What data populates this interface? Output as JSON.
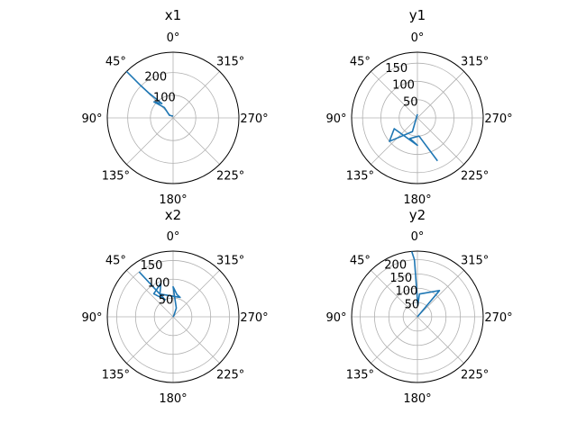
{
  "chart_data": [
    {
      "type": "polar-line",
      "title": "x1",
      "theta_direction": "clockwise",
      "theta_zero": "top",
      "angle_labels": [
        "0°",
        "315°",
        "270°",
        "225°",
        "180°",
        "135°",
        "90°",
        "45°"
      ],
      "r_ticks": [
        100,
        200
      ],
      "r_tick_labels": [
        "100",
        "200"
      ],
      "rlim": [
        0,
        290
      ],
      "series": [
        {
          "color": "#1f77b4",
          "points": [
            [
              0,
              8
            ],
            [
              55,
              20
            ],
            [
              40,
              60
            ],
            [
              50,
              110
            ],
            [
              38,
              80
            ],
            [
              44,
              150
            ],
            [
              44,
              140
            ],
            [
              45,
              200
            ],
            [
              45,
              305
            ]
          ]
        }
      ]
    },
    {
      "type": "polar-line",
      "title": "y1",
      "theta_direction": "clockwise",
      "theta_zero": "top",
      "angle_labels": [
        "0°",
        "315°",
        "270°",
        "225°",
        "180°",
        "135°",
        "90°",
        "45°"
      ],
      "r_ticks": [
        50,
        100,
        150
      ],
      "r_tick_labels": [
        "50",
        "100",
        "150"
      ],
      "rlim": [
        0,
        180
      ],
      "series": [
        {
          "color": "#1f77b4",
          "points": [
            [
              0,
              10
            ],
            [
              160,
              40
            ],
            [
              130,
              100
            ],
            [
              115,
              70
            ],
            [
              180,
              75
            ],
            [
              160,
              60
            ],
            [
              185,
              50
            ],
            [
              205,
              130
            ]
          ]
        }
      ]
    },
    {
      "type": "polar-line",
      "title": "x2",
      "theta_direction": "clockwise",
      "theta_zero": "top",
      "angle_labels": [
        "0°",
        "315°",
        "270°",
        "225°",
        "180°",
        "135°",
        "90°",
        "45°"
      ],
      "r_ticks": [
        50,
        100,
        150
      ],
      "r_tick_labels": [
        "50",
        "100",
        "150"
      ],
      "rlim": [
        0,
        175
      ],
      "series": [
        {
          "color": "#1f77b4",
          "points": [
            [
              0,
              0
            ],
            [
              330,
              5
            ],
            [
              340,
              25
            ],
            [
              0,
              80
            ],
            [
              350,
              60
            ],
            [
              340,
              55
            ],
            [
              30,
              70
            ],
            [
              20,
              95
            ],
            [
              40,
              80
            ],
            [
              25,
              50
            ],
            [
              37,
              150
            ]
          ]
        }
      ]
    },
    {
      "type": "polar-line",
      "title": "y2",
      "theta_direction": "clockwise",
      "theta_zero": "top",
      "angle_labels": [
        "0°",
        "315°",
        "270°",
        "225°",
        "180°",
        "135°",
        "90°",
        "45°"
      ],
      "r_ticks": [
        50,
        100,
        150,
        200
      ],
      "r_tick_labels": [
        "50",
        "100",
        "150",
        "200"
      ],
      "rlim": [
        0,
        230
      ],
      "series": [
        {
          "color": "#1f77b4",
          "points": [
            [
              0,
              0
            ],
            [
              320,
              120
            ],
            [
              355,
              80
            ],
            [
              358,
              40
            ],
            [
              3,
              200
            ],
            [
              5,
              230
            ]
          ]
        }
      ]
    }
  ]
}
